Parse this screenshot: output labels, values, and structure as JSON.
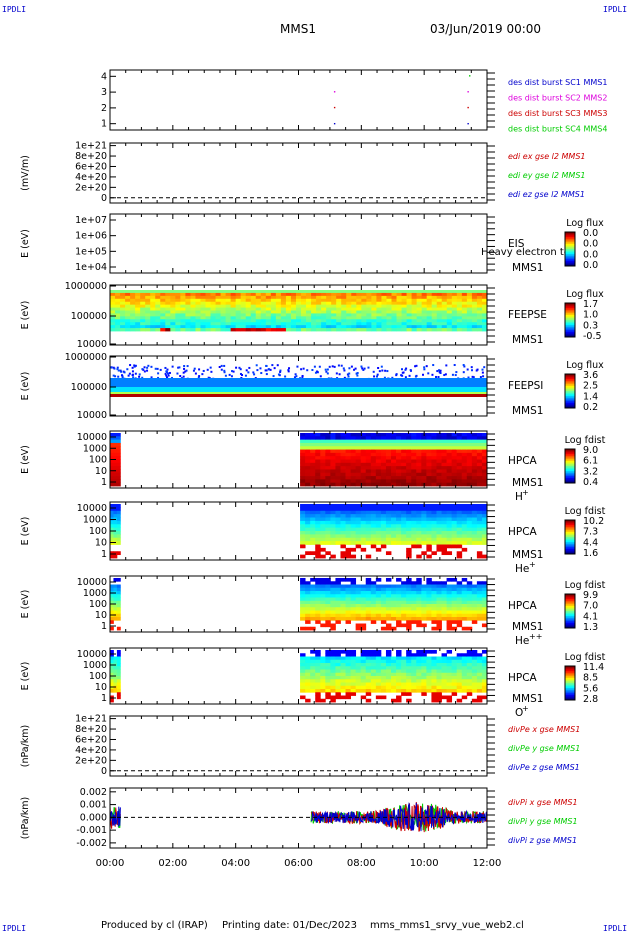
{
  "corners": {
    "top_left": "IPDLI",
    "top_right": "IPDLI",
    "bottom_left": "IPDLI",
    "bottom_right": "IPDLI"
  },
  "header": {
    "spacecraft": "MMS1",
    "datetime": "03/Jun/2019 00:00"
  },
  "footer": {
    "produced_by": "Produced by cl (IRAP)",
    "printing_date": "Printing date: 01/Dec/2023",
    "script": "mms_mms1_srvy_vue_web2.cl"
  },
  "colors": {
    "frame": "#000000",
    "blue": "#0000cc",
    "magenta": "#dd00dd",
    "red": "#cc0000",
    "green": "#00cc00"
  },
  "chart_data": [
    {
      "type": "scatter",
      "id": "burst",
      "yticks": [
        "1",
        "2",
        "3",
        "4"
      ],
      "ylim": [
        0.6,
        4.4
      ],
      "series": [
        {
          "name": "des dist burst SC1 MMS1",
          "color": "#0000cc",
          "points": [
            [
              7.15,
              1
            ],
            [
              11.4,
              1
            ]
          ]
        },
        {
          "name": "des dist burst SC2 MMS2",
          "color": "#dd00dd",
          "points": [
            [
              7.15,
              3.02
            ],
            [
              11.4,
              3.02
            ]
          ]
        },
        {
          "name": "des dist burst SC3 MMS3",
          "color": "#cc0000",
          "points": [
            [
              7.15,
              2.02
            ],
            [
              11.4,
              2.02
            ]
          ]
        },
        {
          "name": "des dist burst SC4 MMS4",
          "color": "#00cc00",
          "points": [
            [
              11.45,
              4.03
            ]
          ]
        }
      ]
    },
    {
      "type": "line",
      "id": "edi",
      "ylabel": "(mV/m)",
      "yticks": [
        "1e+21",
        "8e+20",
        "6e+20",
        "4e+20",
        "2e+20",
        "0"
      ],
      "ylim": [
        -1e+20,
        1.05e+21
      ],
      "legend": [
        {
          "name": "edi ex gse l2 MMS1",
          "color": "#cc0000"
        },
        {
          "name": "edi ey gse l2 MMS1",
          "color": "#00cc00"
        },
        {
          "name": "edi ez gse l2 MMS1",
          "color": "#0000cc"
        }
      ]
    },
    {
      "type": "heatmap",
      "id": "eis",
      "ylabel": "E (eV)",
      "yticks": [
        "1e+07",
        "1e+06",
        "1e+05",
        "1e+04"
      ],
      "labels": [
        "EIS",
        "MMS1"
      ],
      "overlay_text": "Heavy electron to",
      "colorbar": {
        "title": "Log flux",
        "ticks": [
          "0.0",
          "0.0",
          "0.0",
          "0.0"
        ]
      }
    },
    {
      "type": "heatmap",
      "id": "feepse",
      "ylabel": "E (eV)",
      "yticks": [
        "1000000",
        "100000",
        "10000"
      ],
      "labels": [
        "FEEPSE",
        "MMS1"
      ],
      "time_coverage": [
        [
          0.0,
          12.0
        ]
      ],
      "colorbar": {
        "title": "Log flux",
        "ticks": [
          "1.7",
          "1.0",
          "0.3",
          "-0.5"
        ]
      }
    },
    {
      "type": "heatmap",
      "id": "feepsi",
      "ylabel": "E (eV)",
      "yticks": [
        "1000000",
        "100000",
        "10000"
      ],
      "labels": [
        "FEEPSI",
        "MMS1"
      ],
      "time_coverage": [
        [
          0.0,
          12.0
        ]
      ],
      "colorbar": {
        "title": "Log flux",
        "ticks": [
          "3.6",
          "2.5",
          "1.4",
          "0.2"
        ]
      }
    },
    {
      "type": "heatmap",
      "id": "hpca_h",
      "ylabel": "E (eV)",
      "yticks": [
        "10000",
        "1000",
        "100",
        "10",
        "1"
      ],
      "labels": [
        "HPCA",
        "MMS1"
      ],
      "species": "H",
      "species_sup": "+",
      "time_coverage": [
        [
          0.0,
          0.33
        ],
        [
          6.05,
          12.0
        ]
      ],
      "colorbar": {
        "title": "Log fdist",
        "ticks": [
          "9.0",
          "6.1",
          "3.2",
          "0.4"
        ]
      }
    },
    {
      "type": "heatmap",
      "id": "hpca_he",
      "ylabel": "E (eV)",
      "yticks": [
        "10000",
        "1000",
        "100",
        "10",
        "1"
      ],
      "labels": [
        "HPCA",
        "MMS1"
      ],
      "species": "He",
      "species_sup": "+",
      "time_coverage": [
        [
          0.0,
          0.33
        ],
        [
          6.05,
          12.0
        ]
      ],
      "colorbar": {
        "title": "Log fdist",
        "ticks": [
          "10.2",
          "7.3",
          "4.4",
          "1.6"
        ]
      }
    },
    {
      "type": "heatmap",
      "id": "hpca_hepp",
      "ylabel": "E (eV)",
      "yticks": [
        "10000",
        "1000",
        "100",
        "10",
        "1"
      ],
      "labels": [
        "HPCA",
        "MMS1"
      ],
      "species": "He",
      "species_sup": "++",
      "time_coverage": [
        [
          0.0,
          0.33
        ],
        [
          6.05,
          12.0
        ]
      ],
      "colorbar": {
        "title": "Log fdist",
        "ticks": [
          "9.9",
          "7.0",
          "4.1",
          "1.3"
        ]
      }
    },
    {
      "type": "heatmap",
      "id": "hpca_o",
      "ylabel": "E (eV)",
      "yticks": [
        "10000",
        "1000",
        "100",
        "10",
        "1"
      ],
      "labels": [
        "HPCA",
        "MMS1"
      ],
      "species": "O",
      "species_sup": "+",
      "time_coverage": [
        [
          0.0,
          0.33
        ],
        [
          6.05,
          12.0
        ]
      ],
      "colorbar": {
        "title": "Log fdist",
        "ticks": [
          "11.4",
          "8.5",
          "5.6",
          "2.8"
        ]
      }
    },
    {
      "type": "line",
      "id": "divpe",
      "ylabel": "(nPa/km)",
      "yticks": [
        "1e+21",
        "8e+20",
        "6e+20",
        "4e+20",
        "2e+20",
        "0"
      ],
      "ylim": [
        -1e+20,
        1.05e+21
      ],
      "legend": [
        {
          "name": "divPe x gse MMS1",
          "color": "#cc0000"
        },
        {
          "name": "divPe y gse MMS1",
          "color": "#00cc00"
        },
        {
          "name": "divPe z gse MMS1",
          "color": "#0000cc"
        }
      ]
    },
    {
      "type": "line",
      "id": "divpi",
      "ylabel": "(nPa/km)",
      "yticks": [
        "0.002",
        "0.001",
        "0.000",
        "-0.001",
        "-0.002"
      ],
      "ylim": [
        -0.0024,
        0.0023
      ],
      "time_coverage": [
        [
          0.0,
          0.33
        ],
        [
          6.4,
          12.0
        ]
      ],
      "legend": [
        {
          "name": "divPi x gse MMS1",
          "color": "#cc0000"
        },
        {
          "name": "divPi y gse MMS1",
          "color": "#00cc00"
        },
        {
          "name": "divPi z gse MMS1",
          "color": "#0000cc"
        }
      ]
    }
  ],
  "x_axis": {
    "ticks": [
      "00:00",
      "02:00",
      "04:00",
      "06:00",
      "08:00",
      "10:00",
      "12:00"
    ],
    "range_hours": [
      0,
      12
    ]
  }
}
